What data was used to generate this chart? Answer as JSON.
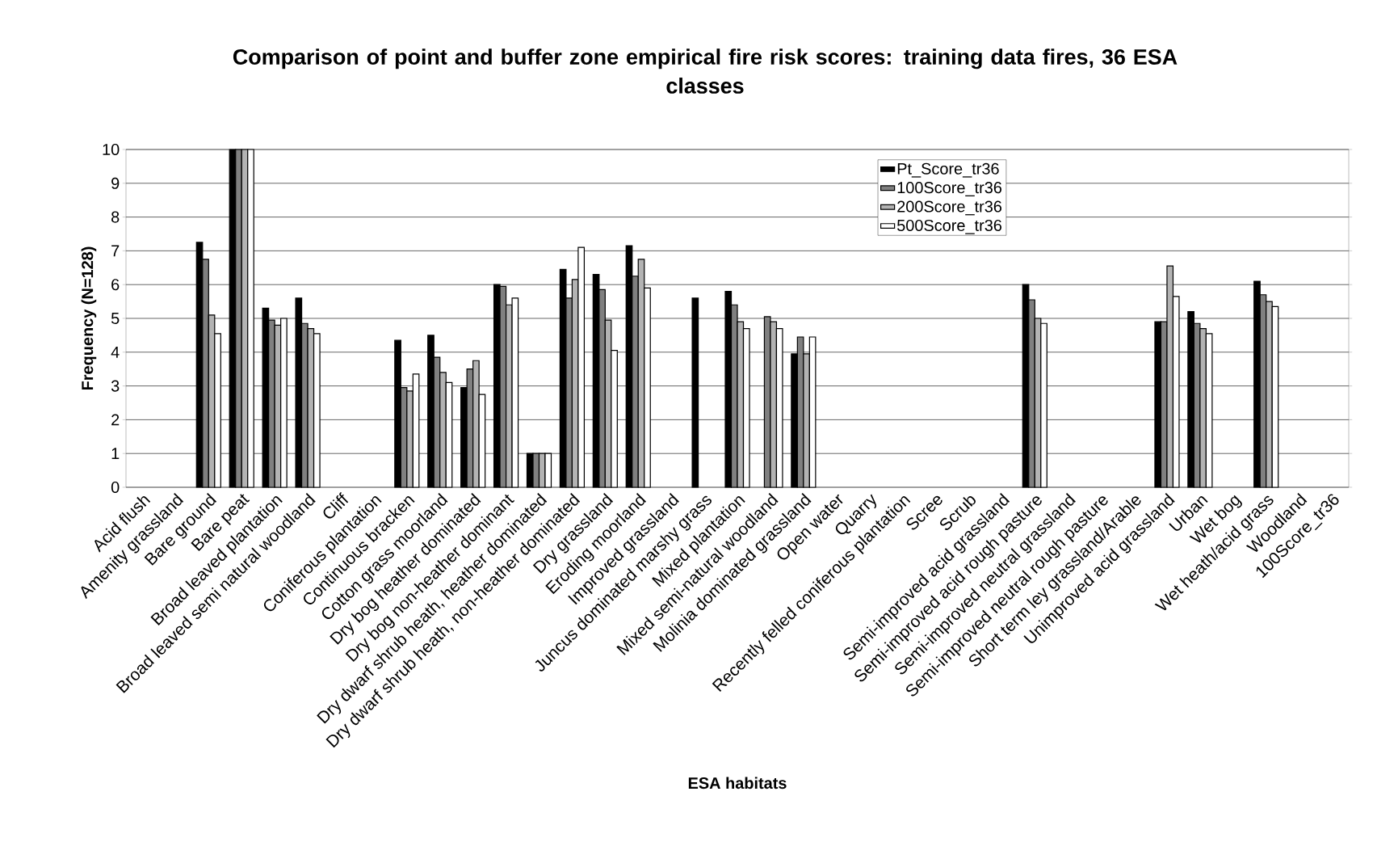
{
  "chart_data": {
    "type": "bar",
    "title": "Comparison of point and buffer zone empirical fire risk scores: training data fires, 36 ESA classes",
    "xlabel": "ESA habitats",
    "ylabel": "Frequency (N=128)",
    "categories": [
      "Acid flush",
      "Amenity grassland",
      "Bare ground",
      "Bare peat",
      "Broad leaved plantation",
      "Broad leaved semi natural woodland",
      "Cliff",
      "Coniferous plantation",
      "Continuous bracken",
      "Cotton grass moorland",
      "Dry bog heather dominated",
      "Dry bog non-heather dominant",
      "Dry dwarf shrub heath, heather dominated",
      "Dry dwarf shrub heath, non-heather dominated",
      "Dry grassland",
      "Eroding moorland",
      "Improved grassland",
      "Juncus dominated marshy grass",
      "Mixed plantation",
      "Mixed semi-natural woodland",
      "Molinia dominated grassland",
      "Open water",
      "Quarry",
      "Recently felled coniferous plantation",
      "Scree",
      "Scrub",
      "Semi-improved acid grassland",
      "Semi-improved acid rough pasture",
      "Semi-improved neutral grassland",
      "Semi-improved neutral rough pasture",
      "Short term ley grassland/Arable",
      "Unimproved acid grassland",
      "Urban",
      "Wet bog",
      "Wet heath/acid grass",
      "Woodland",
      "100Score_tr36"
    ],
    "series": [
      {
        "name": "Pt_Score_tr36",
        "color": "#000000",
        "values": [
          null,
          null,
          7.25,
          10,
          5.3,
          5.6,
          null,
          null,
          4.35,
          4.5,
          2.95,
          6.0,
          1.0,
          6.45,
          6.3,
          7.15,
          null,
          5.6,
          5.8,
          null,
          3.95,
          null,
          null,
          null,
          null,
          null,
          null,
          6.0,
          null,
          null,
          null,
          4.9,
          5.2,
          null,
          6.1,
          null,
          null
        ]
      },
      {
        "name": "100Score_tr36",
        "color": "#808080",
        "values": [
          null,
          null,
          6.75,
          10,
          4.95,
          4.85,
          null,
          null,
          2.95,
          3.85,
          3.5,
          5.95,
          1.0,
          5.6,
          5.85,
          6.25,
          null,
          null,
          5.4,
          5.05,
          4.45,
          null,
          null,
          null,
          null,
          null,
          null,
          5.55,
          null,
          null,
          null,
          4.9,
          4.85,
          null,
          5.7,
          null,
          null
        ]
      },
      {
        "name": "200Score_tr36",
        "color": "#b3b3b3",
        "values": [
          null,
          null,
          5.1,
          10,
          4.8,
          4.7,
          null,
          null,
          2.85,
          3.4,
          3.75,
          5.4,
          1.0,
          6.15,
          4.95,
          6.75,
          null,
          null,
          4.9,
          4.9,
          3.95,
          null,
          null,
          null,
          null,
          null,
          null,
          5.0,
          null,
          null,
          null,
          6.55,
          4.7,
          null,
          5.5,
          null,
          null
        ]
      },
      {
        "name": "500Score_tr36",
        "color": "#ffffff",
        "values": [
          null,
          null,
          4.55,
          10,
          5.0,
          4.55,
          null,
          null,
          3.35,
          3.1,
          2.75,
          5.6,
          1.0,
          7.1,
          4.05,
          5.9,
          null,
          null,
          4.7,
          4.7,
          4.45,
          null,
          null,
          null,
          null,
          null,
          null,
          4.85,
          null,
          null,
          null,
          5.65,
          4.55,
          null,
          5.35,
          null,
          null
        ]
      }
    ],
    "ylim": [
      0,
      10
    ],
    "yticks": [
      0,
      1,
      2,
      3,
      4,
      5,
      6,
      7,
      8,
      9,
      10
    ],
    "grid": "y",
    "legend": "top right"
  }
}
